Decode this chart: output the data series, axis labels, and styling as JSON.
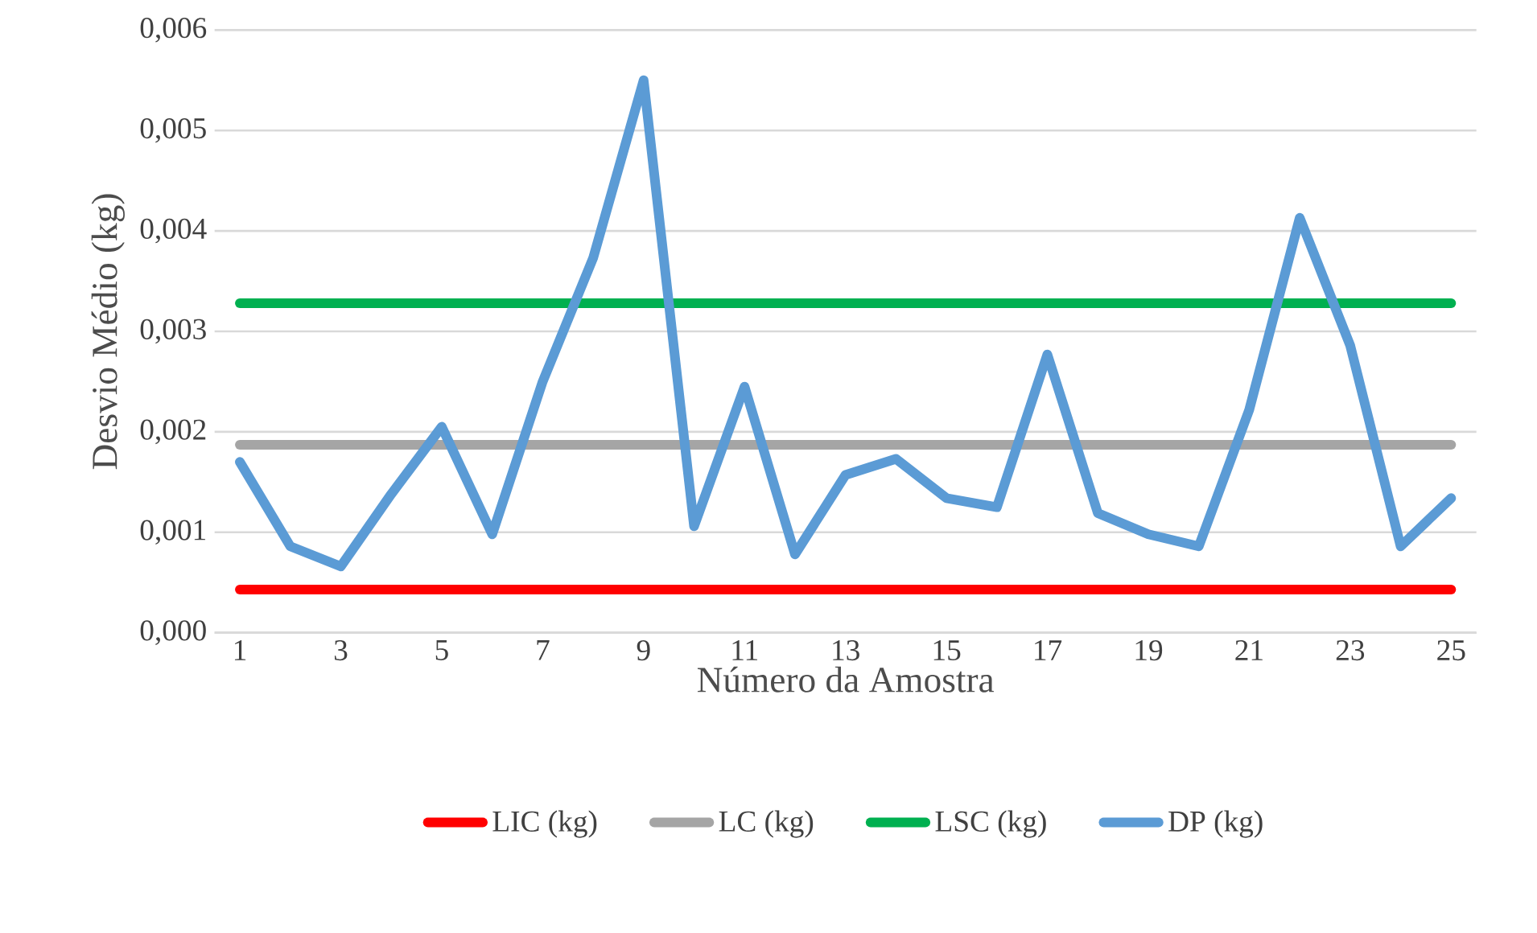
{
  "chart_data": {
    "type": "line",
    "xlabel": "Número da Amostra",
    "ylabel": "Desvio Médio (kg)",
    "x": [
      1,
      2,
      3,
      4,
      5,
      6,
      7,
      8,
      9,
      10,
      11,
      12,
      13,
      14,
      15,
      16,
      17,
      18,
      19,
      20,
      21,
      22,
      23,
      24,
      25
    ],
    "series": [
      {
        "name": "LIC (kg)",
        "color": "#ff0000",
        "values": [
          0.00043,
          0.00043,
          0.00043,
          0.00043,
          0.00043,
          0.00043,
          0.00043,
          0.00043,
          0.00043,
          0.00043,
          0.00043,
          0.00043,
          0.00043,
          0.00043,
          0.00043,
          0.00043,
          0.00043,
          0.00043,
          0.00043,
          0.00043,
          0.00043,
          0.00043,
          0.00043,
          0.00043,
          0.00043
        ]
      },
      {
        "name": "LC (kg)",
        "color": "#a5a5a5",
        "values": [
          0.00187,
          0.00187,
          0.00187,
          0.00187,
          0.00187,
          0.00187,
          0.00187,
          0.00187,
          0.00187,
          0.00187,
          0.00187,
          0.00187,
          0.00187,
          0.00187,
          0.00187,
          0.00187,
          0.00187,
          0.00187,
          0.00187,
          0.00187,
          0.00187,
          0.00187,
          0.00187,
          0.00187,
          0.00187
        ]
      },
      {
        "name": "LSC (kg)",
        "color": "#00b050",
        "values": [
          0.00328,
          0.00328,
          0.00328,
          0.00328,
          0.00328,
          0.00328,
          0.00328,
          0.00328,
          0.00328,
          0.00328,
          0.00328,
          0.00328,
          0.00328,
          0.00328,
          0.00328,
          0.00328,
          0.00328,
          0.00328,
          0.00328,
          0.00328,
          0.00328,
          0.00328,
          0.00328,
          0.00328,
          0.00328
        ]
      },
      {
        "name": "DP (kg)",
        "color": "#5b9bd5",
        "values": [
          0.0017,
          0.00086,
          0.00066,
          0.00138,
          0.00205,
          0.00098,
          0.0025,
          0.00373,
          0.0055,
          0.00106,
          0.00245,
          0.00078,
          0.00157,
          0.00173,
          0.00134,
          0.00125,
          0.00277,
          0.00119,
          0.00098,
          0.00086,
          0.00222,
          0.00413,
          0.00286,
          0.00086,
          0.00134
        ]
      }
    ],
    "xlim": [
      0.5,
      25.5
    ],
    "xticks": [
      1,
      3,
      5,
      7,
      9,
      11,
      13,
      15,
      17,
      19,
      21,
      23,
      25
    ],
    "ylim": [
      0,
      0.006
    ],
    "yticks": [
      {
        "value": 0,
        "label": "0,000"
      },
      {
        "value": 0.001,
        "label": "0,001"
      },
      {
        "value": 0.002,
        "label": "0,002"
      },
      {
        "value": 0.003,
        "label": "0,003"
      },
      {
        "value": 0.004,
        "label": "0,004"
      },
      {
        "value": 0.005,
        "label": "0,005"
      },
      {
        "value": 0.006,
        "label": "0,006"
      }
    ],
    "grid": "y",
    "legend": "bottom",
    "marker": "none",
    "line_style": "solid"
  }
}
